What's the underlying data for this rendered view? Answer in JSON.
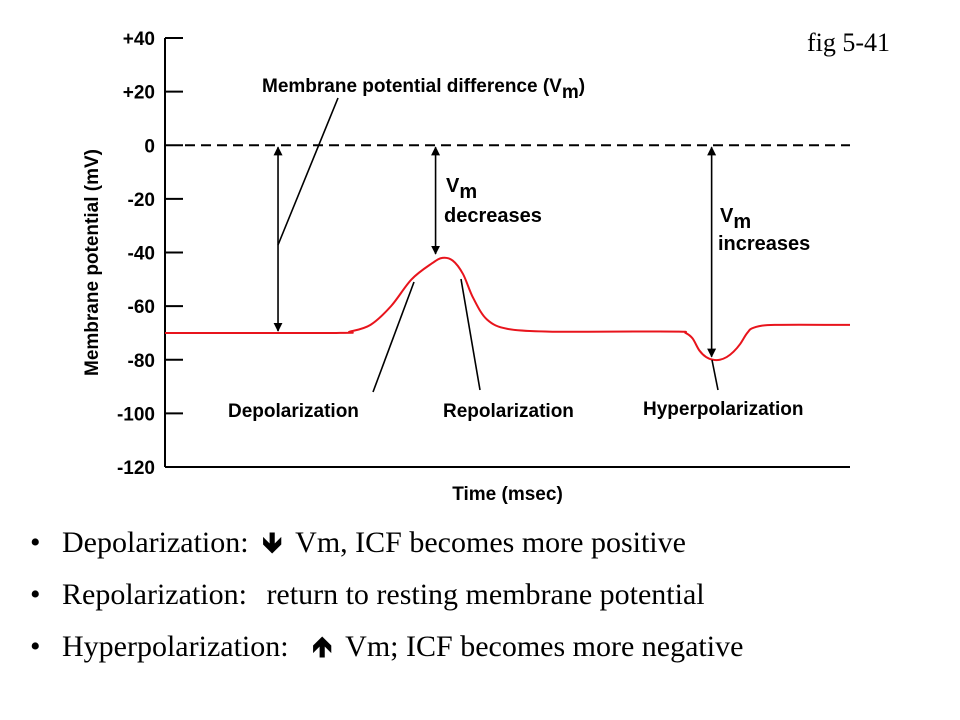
{
  "figure_label": "fig 5-41",
  "chart_data": {
    "type": "line",
    "title": "",
    "xlabel": "Time (msec)",
    "ylabel": "Membrane potential (mV)",
    "ylim": [
      -120,
      40
    ],
    "yticks": [
      40,
      20,
      0,
      -20,
      -40,
      -60,
      -80,
      -100,
      -120
    ],
    "ytick_labels": [
      "+40",
      "+20",
      "0",
      "-20",
      "-40",
      "-60",
      "-80",
      "-100",
      "-120"
    ],
    "xlim": [
      0,
      100
    ],
    "zero_reference_line": 0,
    "series": [
      {
        "color": "#e8141c",
        "x": [
          0,
          25,
          27,
          30,
          33,
          36,
          39,
          40.5,
          42,
          43.5,
          45,
          47,
          50,
          56,
          65,
          75,
          76,
          77,
          78,
          79,
          80,
          81,
          82,
          83,
          84,
          85,
          86,
          89,
          100
        ],
        "y": [
          -70,
          -70,
          -69.5,
          -67,
          -60,
          -50,
          -44,
          -42,
          -43,
          -48,
          -57,
          -65,
          -68.5,
          -69.5,
          -69.5,
          -69.5,
          -70,
          -72,
          -76.5,
          -79,
          -80,
          -80,
          -79,
          -77,
          -74,
          -70,
          -68,
          -67,
          -67
        ]
      }
    ],
    "annotations": [
      {
        "text": "Membrane potential difference (V",
        "subscript": "m",
        "suffix": ")"
      },
      {
        "text": "V",
        "subscript": "m",
        "text2": "decreases"
      },
      {
        "text": "V",
        "subscript": "m",
        "text2": "increases"
      },
      {
        "text": "Depolarization"
      },
      {
        "text": "Repolarization"
      },
      {
        "text": "Hyperpolarization"
      }
    ]
  },
  "notes": [
    {
      "bullet": "•",
      "label": "Depolarization:",
      "arrow": "down-arrow",
      "glyph": "🡻",
      "rest": "Vm, ICF becomes more positive"
    },
    {
      "bullet": "•",
      "label": "Repolarization:",
      "arrow": "",
      "glyph": "",
      "rest": "return to resting membrane potential"
    },
    {
      "bullet": "•",
      "label": "Hyperpolarization:",
      "arrow": "up-arrow",
      "glyph": "🡹",
      "rest": "Vm; ICF becomes more negative"
    }
  ]
}
